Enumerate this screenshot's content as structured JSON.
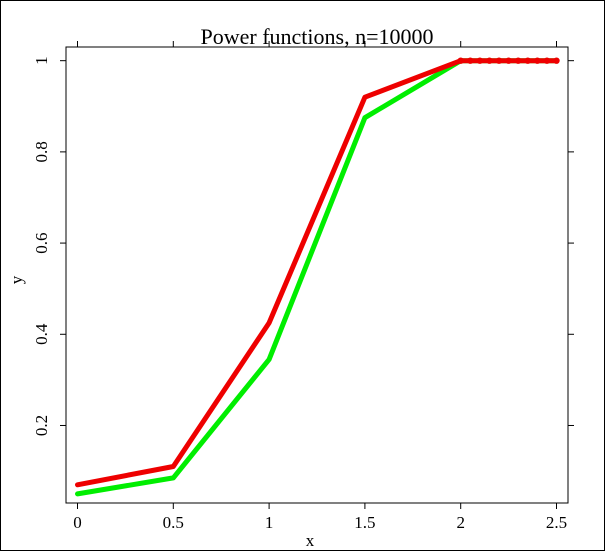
{
  "chart_data": {
    "type": "line",
    "title": "Power functions, n=10000",
    "xlabel": "x",
    "ylabel": "y",
    "xlim": [
      -0.06,
      2.56
    ],
    "ylim": [
      0.03,
      1.03
    ],
    "x_ticks": [
      "0",
      "0.5",
      "1",
      "1.5",
      "2",
      "2.5"
    ],
    "y_ticks": [
      "0.2",
      "0.4",
      "0.6",
      "0.8",
      "1"
    ],
    "x": [
      0,
      0.5,
      1,
      1.5,
      2,
      2.5
    ],
    "grid": false,
    "series": [
      {
        "values": [
          0.05,
          0.085,
          0.345,
          0.875,
          1.0,
          1.0
        ],
        "color": "#00ee00",
        "style": "line"
      },
      {
        "values": [
          0.07,
          0.11,
          0.425,
          0.92,
          1.0,
          1.0
        ],
        "color": "#ee0000",
        "style": "line+dots",
        "dot_x": [
          2,
          2.05,
          2.1,
          2.15,
          2.2,
          2.25,
          2.3,
          2.35,
          2.4,
          2.45,
          2.5
        ]
      }
    ]
  }
}
